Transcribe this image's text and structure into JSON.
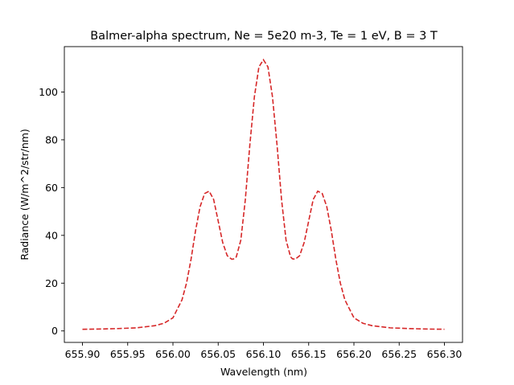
{
  "chart_data": {
    "type": "line",
    "title": "Balmer-alpha spectrum, Ne = 5e20 m-3, Te = 1 eV, B = 3 T",
    "xlabel": "Wavelength (nm)",
    "ylabel": "Radiance (W/m^2/str/nm)",
    "xlim": [
      655.88,
      656.32
    ],
    "ylim": [
      -4.8,
      119.0
    ],
    "xticks": [
      "655.90",
      "655.95",
      "656.00",
      "656.05",
      "656.10",
      "656.15",
      "656.20",
      "656.25",
      "656.30"
    ],
    "yticks": [
      "0",
      "20",
      "40",
      "60",
      "80",
      "100"
    ],
    "grid": false,
    "series": [
      {
        "color": "#d62728",
        "linestyle": "dashed",
        "x": [
          655.9,
          655.92,
          655.94,
          655.96,
          655.98,
          655.99,
          656.0,
          656.01,
          656.015,
          656.02,
          656.025,
          656.03,
          656.035,
          656.04,
          656.045,
          656.05,
          656.055,
          656.06,
          656.065,
          656.068,
          656.07,
          656.075,
          656.08,
          656.085,
          656.09,
          656.095,
          656.1,
          656.105,
          656.11,
          656.115,
          656.12,
          656.125,
          656.13,
          656.132,
          656.135,
          656.14,
          656.145,
          656.15,
          656.155,
          656.16,
          656.165,
          656.17,
          656.175,
          656.18,
          656.185,
          656.19,
          656.2,
          656.21,
          656.22,
          656.24,
          656.26,
          656.28,
          656.3
        ],
        "y": [
          0.7,
          0.8,
          1.0,
          1.3,
          2.2,
          3.2,
          5.5,
          13.0,
          20.0,
          30.0,
          42.0,
          52.0,
          57.5,
          58.5,
          55.0,
          46.0,
          37.0,
          31.5,
          30.0,
          30.2,
          31.0,
          38.0,
          55.0,
          78.0,
          98.0,
          110.5,
          113.5,
          110.5,
          98.0,
          78.0,
          55.0,
          38.0,
          31.0,
          30.2,
          30.0,
          31.5,
          37.0,
          46.0,
          55.0,
          58.5,
          57.5,
          52.0,
          42.0,
          30.0,
          20.0,
          13.0,
          5.5,
          3.2,
          2.2,
          1.3,
          1.0,
          0.8,
          0.7
        ]
      }
    ]
  }
}
